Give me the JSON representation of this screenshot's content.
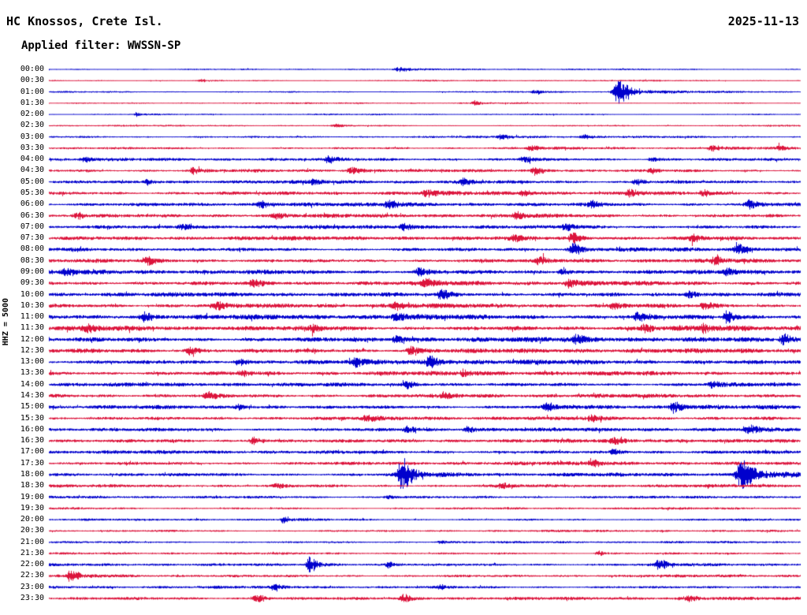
{
  "header": {
    "station": "HC Knossos, Crete Isl.",
    "date": "2025-11-13",
    "filter": "Applied filter: WWSSN-SP"
  },
  "left_axis": {
    "label": "HHZ = 5000"
  },
  "chart_data": {
    "type": "line",
    "subtype": "helicorder-seismogram",
    "title": "HC Knossos, Crete Isl.",
    "date": "2025-11-13",
    "filter": "WWSSN-SP",
    "channel_scale_label": "HHZ = 5000",
    "row_interval_minutes": 30,
    "rows_count": 48,
    "legend_position": "none",
    "grid": false,
    "trace_colors": {
      "blue": "#0000cd",
      "red": "#dc143c"
    },
    "rows": [
      {
        "time": "00:00",
        "color": "blue",
        "noise": 0.9,
        "events": [
          {
            "x": 0.464,
            "amp": 2.2,
            "w": 0.012
          }
        ]
      },
      {
        "time": "00:30",
        "color": "red",
        "noise": 0.85,
        "events": [
          {
            "x": 0.2,
            "amp": 1.2,
            "w": 0.01
          }
        ]
      },
      {
        "time": "01:00",
        "color": "blue",
        "noise": 0.9,
        "events": [
          {
            "x": 0.645,
            "amp": 1.8,
            "w": 0.01
          },
          {
            "x": 0.755,
            "amp": 12,
            "w": 0.016
          }
        ]
      },
      {
        "time": "01:30",
        "color": "red",
        "noise": 0.85,
        "events": [
          {
            "x": 0.565,
            "amp": 2.4,
            "w": 0.008
          }
        ]
      },
      {
        "time": "02:00",
        "color": "blue",
        "noise": 0.85,
        "events": [
          {
            "x": 0.115,
            "amp": 2.0,
            "w": 0.006
          }
        ]
      },
      {
        "time": "02:30",
        "color": "red",
        "noise": 0.9,
        "events": [
          {
            "x": 0.38,
            "amp": 1.4,
            "w": 0.01
          }
        ]
      },
      {
        "time": "03:00",
        "color": "blue",
        "noise": 1.2,
        "events": [
          {
            "x": 0.6,
            "amp": 2.4,
            "w": 0.012
          },
          {
            "x": 0.71,
            "amp": 2.0,
            "w": 0.01
          }
        ]
      },
      {
        "time": "03:30",
        "color": "red",
        "noise": 1.3,
        "events": [
          {
            "x": 0.64,
            "amp": 2.4,
            "w": 0.012
          },
          {
            "x": 0.88,
            "amp": 2.8,
            "w": 0.012
          },
          {
            "x": 0.97,
            "amp": 2.2,
            "w": 0.01
          }
        ]
      },
      {
        "time": "04:00",
        "color": "blue",
        "noise": 1.6,
        "events": [
          {
            "x": 0.045,
            "amp": 2.8,
            "w": 0.01
          },
          {
            "x": 0.37,
            "amp": 2.8,
            "w": 0.012
          },
          {
            "x": 0.63,
            "amp": 3.2,
            "w": 0.012
          },
          {
            "x": 0.8,
            "amp": 2.4,
            "w": 0.01
          }
        ]
      },
      {
        "time": "04:30",
        "color": "red",
        "noise": 1.6,
        "events": [
          {
            "x": 0.19,
            "amp": 2.8,
            "w": 0.012
          },
          {
            "x": 0.4,
            "amp": 3.2,
            "w": 0.012
          },
          {
            "x": 0.645,
            "amp": 3.6,
            "w": 0.012
          },
          {
            "x": 0.8,
            "amp": 2.4,
            "w": 0.01
          }
        ]
      },
      {
        "time": "05:00",
        "color": "blue",
        "noise": 1.8,
        "events": [
          {
            "x": 0.13,
            "amp": 2.4,
            "w": 0.01
          },
          {
            "x": 0.35,
            "amp": 2.4,
            "w": 0.012
          },
          {
            "x": 0.55,
            "amp": 2.6,
            "w": 0.012
          },
          {
            "x": 0.78,
            "amp": 2.8,
            "w": 0.012
          }
        ]
      },
      {
        "time": "05:30",
        "color": "red",
        "noise": 2.0,
        "events": [
          {
            "x": 0.5,
            "amp": 3.2,
            "w": 0.012
          },
          {
            "x": 0.63,
            "amp": 2.8,
            "w": 0.01
          },
          {
            "x": 0.77,
            "amp": 3.6,
            "w": 0.012
          },
          {
            "x": 0.87,
            "amp": 2.8,
            "w": 0.01
          }
        ]
      },
      {
        "time": "06:00",
        "color": "blue",
        "noise": 2.0,
        "events": [
          {
            "x": 0.28,
            "amp": 3.2,
            "w": 0.012
          },
          {
            "x": 0.45,
            "amp": 4.0,
            "w": 0.012
          },
          {
            "x": 0.72,
            "amp": 3.6,
            "w": 0.012
          },
          {
            "x": 0.93,
            "amp": 4.0,
            "w": 0.012
          }
        ]
      },
      {
        "time": "06:30",
        "color": "red",
        "noise": 2.0,
        "events": [
          {
            "x": 0.035,
            "amp": 3.6,
            "w": 0.01
          },
          {
            "x": 0.3,
            "amp": 2.6,
            "w": 0.012
          },
          {
            "x": 0.62,
            "amp": 3.2,
            "w": 0.012
          }
        ]
      },
      {
        "time": "07:00",
        "color": "blue",
        "noise": 2.0,
        "events": [
          {
            "x": 0.175,
            "amp": 3.2,
            "w": 0.012
          },
          {
            "x": 0.47,
            "amp": 3.6,
            "w": 0.012
          },
          {
            "x": 0.685,
            "amp": 3.6,
            "w": 0.012
          }
        ]
      },
      {
        "time": "07:30",
        "color": "red",
        "noise": 2.2,
        "events": [
          {
            "x": 0.615,
            "amp": 3.6,
            "w": 0.012
          },
          {
            "x": 0.695,
            "amp": 4.5,
            "w": 0.012
          },
          {
            "x": 0.855,
            "amp": 3.6,
            "w": 0.012
          }
        ]
      },
      {
        "time": "08:00",
        "color": "blue",
        "noise": 2.0,
        "events": [
          {
            "x": 0.695,
            "amp": 5.5,
            "w": 0.012
          },
          {
            "x": 0.915,
            "amp": 4.5,
            "w": 0.012
          }
        ]
      },
      {
        "time": "08:30",
        "color": "red",
        "noise": 2.0,
        "events": [
          {
            "x": 0.13,
            "amp": 3.6,
            "w": 0.012
          },
          {
            "x": 0.65,
            "amp": 3.2,
            "w": 0.012
          },
          {
            "x": 0.885,
            "amp": 3.2,
            "w": 0.012
          }
        ]
      },
      {
        "time": "09:00",
        "color": "blue",
        "noise": 2.3,
        "events": [
          {
            "x": 0.02,
            "amp": 3.6,
            "w": 0.01
          },
          {
            "x": 0.49,
            "amp": 3.6,
            "w": 0.012
          },
          {
            "x": 0.68,
            "amp": 3.6,
            "w": 0.012
          },
          {
            "x": 0.9,
            "amp": 4.0,
            "w": 0.012
          }
        ]
      },
      {
        "time": "09:30",
        "color": "red",
        "noise": 2.3,
        "events": [
          {
            "x": 0.27,
            "amp": 3.6,
            "w": 0.012
          },
          {
            "x": 0.5,
            "amp": 4.0,
            "w": 0.012
          },
          {
            "x": 0.69,
            "amp": 3.6,
            "w": 0.012
          }
        ]
      },
      {
        "time": "10:00",
        "color": "blue",
        "noise": 2.3,
        "events": [
          {
            "x": 0.52,
            "amp": 5.0,
            "w": 0.012
          },
          {
            "x": 0.85,
            "amp": 3.6,
            "w": 0.012
          }
        ]
      },
      {
        "time": "10:30",
        "color": "red",
        "noise": 2.3,
        "events": [
          {
            "x": 0.22,
            "amp": 3.6,
            "w": 0.012
          },
          {
            "x": 0.46,
            "amp": 3.2,
            "w": 0.012
          },
          {
            "x": 0.75,
            "amp": 3.0,
            "w": 0.012
          },
          {
            "x": 0.87,
            "amp": 3.6,
            "w": 0.012
          }
        ]
      },
      {
        "time": "11:00",
        "color": "blue",
        "noise": 2.6,
        "events": [
          {
            "x": 0.125,
            "amp": 4.0,
            "w": 0.012
          },
          {
            "x": 0.46,
            "amp": 3.6,
            "w": 0.012
          },
          {
            "x": 0.78,
            "amp": 3.6,
            "w": 0.012
          },
          {
            "x": 0.9,
            "amp": 5.0,
            "w": 0.012
          }
        ]
      },
      {
        "time": "11:30",
        "color": "red",
        "noise": 2.6,
        "events": [
          {
            "x": 0.05,
            "amp": 3.2,
            "w": 0.012
          },
          {
            "x": 0.35,
            "amp": 3.2,
            "w": 0.012
          },
          {
            "x": 0.79,
            "amp": 4.0,
            "w": 0.012
          },
          {
            "x": 0.87,
            "amp": 3.4,
            "w": 0.01
          }
        ]
      },
      {
        "time": "12:00",
        "color": "blue",
        "noise": 2.6,
        "events": [
          {
            "x": 0.46,
            "amp": 3.6,
            "w": 0.012
          },
          {
            "x": 0.7,
            "amp": 3.6,
            "w": 0.012
          },
          {
            "x": 0.975,
            "amp": 5.0,
            "w": 0.01
          }
        ]
      },
      {
        "time": "12:30",
        "color": "red",
        "noise": 2.4,
        "events": [
          {
            "x": 0.185,
            "amp": 3.6,
            "w": 0.012
          },
          {
            "x": 0.48,
            "amp": 4.0,
            "w": 0.012
          }
        ]
      },
      {
        "time": "13:00",
        "color": "blue",
        "noise": 2.4,
        "events": [
          {
            "x": 0.25,
            "amp": 3.2,
            "w": 0.012
          },
          {
            "x": 0.405,
            "amp": 3.6,
            "w": 0.012
          },
          {
            "x": 0.505,
            "amp": 5.5,
            "w": 0.012
          }
        ]
      },
      {
        "time": "13:30",
        "color": "red",
        "noise": 2.3,
        "events": [
          {
            "x": 0.255,
            "amp": 3.2,
            "w": 0.012
          },
          {
            "x": 0.55,
            "amp": 2.8,
            "w": 0.012
          }
        ]
      },
      {
        "time": "14:00",
        "color": "blue",
        "noise": 2.1,
        "events": [
          {
            "x": 0.475,
            "amp": 3.6,
            "w": 0.012
          },
          {
            "x": 0.88,
            "amp": 2.8,
            "w": 0.012
          }
        ]
      },
      {
        "time": "14:30",
        "color": "red",
        "noise": 2.1,
        "events": [
          {
            "x": 0.21,
            "amp": 3.2,
            "w": 0.012
          },
          {
            "x": 0.525,
            "amp": 2.8,
            "w": 0.012
          }
        ]
      },
      {
        "time": "15:00",
        "color": "blue",
        "noise": 2.1,
        "events": [
          {
            "x": 0.25,
            "amp": 2.8,
            "w": 0.012
          },
          {
            "x": 0.66,
            "amp": 2.8,
            "w": 0.012
          },
          {
            "x": 0.83,
            "amp": 5.5,
            "w": 0.012
          }
        ]
      },
      {
        "time": "15:30",
        "color": "red",
        "noise": 2.0,
        "events": [
          {
            "x": 0.42,
            "amp": 2.4,
            "w": 0.012
          },
          {
            "x": 0.72,
            "amp": 2.4,
            "w": 0.012
          }
        ]
      },
      {
        "time": "16:00",
        "color": "blue",
        "noise": 2.0,
        "events": [
          {
            "x": 0.475,
            "amp": 3.6,
            "w": 0.012
          },
          {
            "x": 0.555,
            "amp": 3.2,
            "w": 0.012
          },
          {
            "x": 0.93,
            "amp": 3.6,
            "w": 0.012
          }
        ]
      },
      {
        "time": "16:30",
        "color": "red",
        "noise": 2.0,
        "events": [
          {
            "x": 0.27,
            "amp": 3.6,
            "w": 0.012
          },
          {
            "x": 0.75,
            "amp": 2.8,
            "w": 0.012
          }
        ]
      },
      {
        "time": "17:00",
        "color": "blue",
        "noise": 1.9,
        "events": [
          {
            "x": 0.75,
            "amp": 2.8,
            "w": 0.012
          }
        ]
      },
      {
        "time": "17:30",
        "color": "red",
        "noise": 1.9,
        "events": [
          {
            "x": 0.72,
            "amp": 3.6,
            "w": 0.012
          }
        ]
      },
      {
        "time": "18:00",
        "color": "blue",
        "noise": 1.9,
        "events": [
          {
            "x": 0.468,
            "amp": 13,
            "w": 0.016
          },
          {
            "x": 0.92,
            "amp": 14,
            "w": 0.018
          }
        ]
      },
      {
        "time": "18:30",
        "color": "red",
        "noise": 1.7,
        "events": [
          {
            "x": 0.3,
            "amp": 2.4,
            "w": 0.012
          },
          {
            "x": 0.6,
            "amp": 2.2,
            "w": 0.012
          }
        ]
      },
      {
        "time": "19:00",
        "color": "blue",
        "noise": 1.5,
        "events": [
          {
            "x": 0.45,
            "amp": 1.8,
            "w": 0.012
          }
        ]
      },
      {
        "time": "19:30",
        "color": "red",
        "noise": 1.2,
        "events": []
      },
      {
        "time": "20:00",
        "color": "blue",
        "noise": 1.2,
        "events": [
          {
            "x": 0.31,
            "amp": 3.2,
            "w": 0.008
          }
        ]
      },
      {
        "time": "20:30",
        "color": "red",
        "noise": 1.2,
        "events": []
      },
      {
        "time": "21:00",
        "color": "blue",
        "noise": 1.2,
        "events": [
          {
            "x": 0.52,
            "amp": 1.6,
            "w": 0.01
          }
        ]
      },
      {
        "time": "21:30",
        "color": "red",
        "noise": 1.2,
        "events": [
          {
            "x": 0.73,
            "amp": 2.4,
            "w": 0.01
          }
        ]
      },
      {
        "time": "22:00",
        "color": "blue",
        "noise": 1.5,
        "events": [
          {
            "x": 0.345,
            "amp": 7.5,
            "w": 0.01
          },
          {
            "x": 0.45,
            "amp": 2.8,
            "w": 0.01
          },
          {
            "x": 0.81,
            "amp": 5.0,
            "w": 0.01
          }
        ]
      },
      {
        "time": "22:30",
        "color": "red",
        "noise": 1.5,
        "events": [
          {
            "x": 0.028,
            "amp": 6.5,
            "w": 0.01
          }
        ]
      },
      {
        "time": "23:00",
        "color": "blue",
        "noise": 1.5,
        "events": [
          {
            "x": 0.3,
            "amp": 2.4,
            "w": 0.01
          },
          {
            "x": 0.52,
            "amp": 1.8,
            "w": 0.01
          }
        ]
      },
      {
        "time": "23:30",
        "color": "red",
        "noise": 1.7,
        "events": [
          {
            "x": 0.275,
            "amp": 4.0,
            "w": 0.012
          },
          {
            "x": 0.47,
            "amp": 3.6,
            "w": 0.012
          },
          {
            "x": 0.85,
            "amp": 2.4,
            "w": 0.012
          }
        ]
      }
    ]
  }
}
